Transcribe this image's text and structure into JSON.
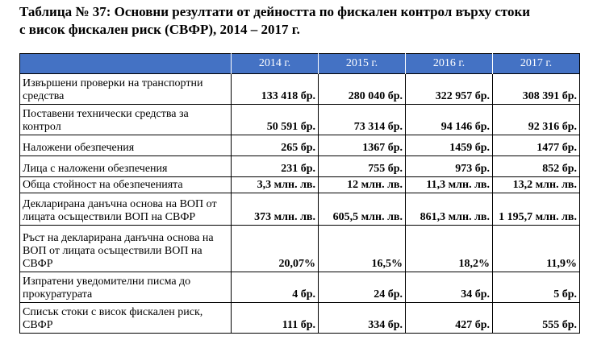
{
  "caption_line1": "Таблица № 37: Основни резултати от дейността по фискален контрол върху стоки",
  "caption_line2": "с висок фискален риск (СВФР), 2014 – 2017 г.",
  "columns": [
    "2014 г.",
    "2015 г.",
    "2016 г.",
    "2017 г."
  ],
  "rows": [
    {
      "label": "Извършени проверки на транспортни средства",
      "values": [
        "133 418 бр.",
        "280 040 бр.",
        "322 957 бр.",
        "308 391 бр."
      ]
    },
    {
      "label": "Поставени технически средства за контрол",
      "values": [
        "50 591 бр.",
        "73 314 бр.",
        "94 146 бр.",
        "92 316 бр."
      ]
    },
    {
      "label": "Наложени обезпечения",
      "values": [
        "265 бр.",
        "1367 бр.",
        "1459 бр.",
        "1477 бр."
      ]
    },
    {
      "label": "Лица с наложени обезпечения",
      "values": [
        "231 бр.",
        "755 бр.",
        "973 бр.",
        "852 бр."
      ]
    },
    {
      "label": "Обща стойност на обезпеченията",
      "values": [
        "3,3 млн. лв.",
        "12 млн. лв.",
        "11,3 млн. лв.",
        "13,2 млн. лв."
      ]
    },
    {
      "label": "Декларирана данъчна основа на ВОП от лицата осъществили ВОП на СВФР",
      "values": [
        "373 млн. лв.",
        "605,5 млн. лв.",
        "861,3 млн. лв.",
        "1 195,7 млн. лв."
      ]
    },
    {
      "label": "Ръст на декларирана данъчна основа на ВОП от лицата осъществили ВОП на СВФР",
      "values": [
        "20,07%",
        "16,5%",
        "18,2%",
        "11,9%"
      ]
    },
    {
      "label": "Изпратени уведомителни писма до прокуратурата",
      "values": [
        "4 бр.",
        "24 бр.",
        "34 бр.",
        "5 бр."
      ]
    },
    {
      "label": "Списък стоки с висок фискален риск, СВФР",
      "values": [
        "111 бр.",
        "334 бр.",
        "427 бр.",
        "555 бр."
      ]
    }
  ]
}
